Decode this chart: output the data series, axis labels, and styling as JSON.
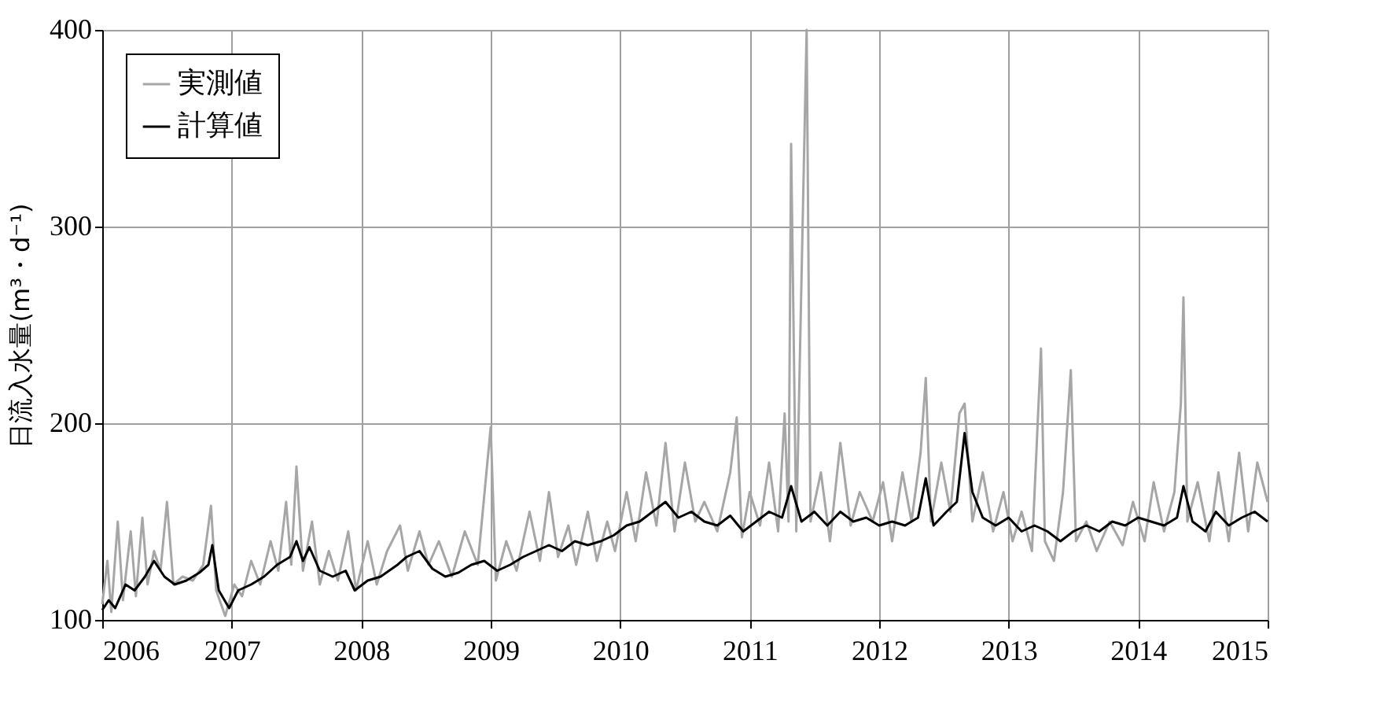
{
  "chart_data": {
    "type": "line",
    "ylabel": "日流入水量(m³・d⁻¹)",
    "xlim": [
      2006,
      2015
    ],
    "xticks": [
      2006,
      2007,
      2008,
      2009,
      2010,
      2011,
      2012,
      2013,
      2014,
      2015
    ],
    "ylim": [
      100,
      400
    ],
    "yticks": [
      100,
      200,
      300,
      400
    ],
    "grid": true,
    "legend": "top left",
    "marker": "none",
    "line_style": "solid",
    "series": [
      {
        "name": "実測値",
        "color": "#a6a6a6",
        "x": [
          2006.0,
          2006.04,
          2006.07,
          2006.12,
          2006.16,
          2006.22,
          2006.26,
          2006.31,
          2006.35,
          2006.4,
          2006.45,
          2006.5,
          2006.55,
          2006.62,
          2006.7,
          2006.78,
          2006.84,
          2006.88,
          2006.95,
          2007.02,
          2007.08,
          2007.15,
          2007.22,
          2007.3,
          2007.36,
          2007.42,
          2007.46,
          2007.5,
          2007.55,
          2007.62,
          2007.68,
          2007.75,
          2007.82,
          2007.9,
          2007.96,
          2008.05,
          2008.12,
          2008.2,
          2008.3,
          2008.36,
          2008.45,
          2008.52,
          2008.6,
          2008.7,
          2008.8,
          2008.9,
          2009.0,
          2009.04,
          2009.12,
          2009.2,
          2009.3,
          2009.38,
          2009.45,
          2009.52,
          2009.6,
          2009.66,
          2009.75,
          2009.82,
          2009.9,
          2009.96,
          2010.05,
          2010.12,
          2010.2,
          2010.28,
          2010.35,
          2010.42,
          2010.5,
          2010.58,
          2010.65,
          2010.75,
          2010.85,
          2010.9,
          2010.94,
          2011.0,
          2011.08,
          2011.15,
          2011.22,
          2011.27,
          2011.3,
          2011.32,
          2011.36,
          2011.44,
          2011.47,
          2011.55,
          2011.62,
          2011.7,
          2011.78,
          2011.85,
          2011.95,
          2012.03,
          2012.1,
          2012.18,
          2012.25,
          2012.32,
          2012.36,
          2012.4,
          2012.48,
          2012.55,
          2012.62,
          2012.66,
          2012.72,
          2012.8,
          2012.88,
          2012.96,
          2013.03,
          2013.1,
          2013.18,
          2013.25,
          2013.28,
          2013.35,
          2013.42,
          2013.48,
          2013.52,
          2013.6,
          2013.68,
          2013.78,
          2013.88,
          2013.96,
          2014.05,
          2014.12,
          2014.2,
          2014.28,
          2014.33,
          2014.35,
          2014.38,
          2014.46,
          2014.55,
          2014.62,
          2014.7,
          2014.78,
          2014.85,
          2014.92,
          2015.0
        ],
        "values": [
          108,
          130,
          104,
          150,
          110,
          145,
          112,
          152,
          118,
          135,
          125,
          160,
          118,
          122,
          120,
          128,
          158,
          115,
          102,
          118,
          112,
          130,
          118,
          140,
          125,
          160,
          128,
          178,
          125,
          150,
          118,
          135,
          120,
          145,
          115,
          140,
          118,
          135,
          148,
          125,
          145,
          128,
          140,
          122,
          145,
          128,
          198,
          120,
          140,
          125,
          155,
          130,
          165,
          132,
          148,
          128,
          155,
          130,
          150,
          135,
          165,
          140,
          175,
          148,
          190,
          145,
          180,
          150,
          160,
          145,
          175,
          203,
          142,
          165,
          148,
          180,
          145,
          205,
          150,
          342,
          145,
          400,
          150,
          175,
          140,
          190,
          148,
          165,
          150,
          170,
          140,
          175,
          150,
          185,
          223,
          150,
          180,
          155,
          205,
          210,
          150,
          175,
          145,
          165,
          140,
          155,
          135,
          238,
          140,
          130,
          165,
          227,
          140,
          150,
          135,
          150,
          138,
          160,
          140,
          170,
          145,
          165,
          210,
          264,
          150,
          170,
          140,
          175,
          140,
          185,
          145,
          180,
          160
        ]
      },
      {
        "name": "計算値",
        "color": "#000000",
        "x": [
          2006.0,
          2006.05,
          2006.1,
          2006.18,
          2006.25,
          2006.33,
          2006.4,
          2006.48,
          2006.56,
          2006.65,
          2006.75,
          2006.82,
          2006.85,
          2006.9,
          2006.98,
          2007.05,
          2007.15,
          2007.25,
          2007.35,
          2007.45,
          2007.5,
          2007.55,
          2007.6,
          2007.68,
          2007.78,
          2007.88,
          2007.95,
          2008.05,
          2008.15,
          2008.28,
          2008.35,
          2008.45,
          2008.55,
          2008.65,
          2008.75,
          2008.85,
          2008.95,
          2009.05,
          2009.15,
          2009.25,
          2009.35,
          2009.45,
          2009.55,
          2009.65,
          2009.75,
          2009.85,
          2009.95,
          2010.05,
          2010.15,
          2010.25,
          2010.35,
          2010.45,
          2010.55,
          2010.65,
          2010.75,
          2010.85,
          2010.95,
          2011.05,
          2011.15,
          2011.25,
          2011.32,
          2011.4,
          2011.5,
          2011.6,
          2011.7,
          2011.8,
          2011.9,
          2012.0,
          2012.1,
          2012.2,
          2012.3,
          2012.36,
          2012.42,
          2012.52,
          2012.6,
          2012.66,
          2012.72,
          2012.8,
          2012.9,
          2013.0,
          2013.1,
          2013.2,
          2013.3,
          2013.4,
          2013.5,
          2013.6,
          2013.7,
          2013.8,
          2013.9,
          2014.0,
          2014.1,
          2014.2,
          2014.3,
          2014.35,
          2014.42,
          2014.52,
          2014.6,
          2014.7,
          2014.8,
          2014.9,
          2015.0
        ],
        "values": [
          105,
          110,
          106,
          118,
          115,
          122,
          130,
          122,
          118,
          120,
          124,
          128,
          138,
          115,
          106,
          115,
          118,
          122,
          128,
          132,
          140,
          130,
          137,
          125,
          122,
          125,
          115,
          120,
          122,
          128,
          132,
          135,
          126,
          122,
          124,
          128,
          130,
          125,
          128,
          132,
          135,
          138,
          135,
          140,
          138,
          140,
          143,
          148,
          150,
          155,
          160,
          152,
          155,
          150,
          148,
          153,
          145,
          150,
          155,
          152,
          168,
          150,
          155,
          148,
          155,
          150,
          152,
          148,
          150,
          148,
          152,
          172,
          148,
          155,
          160,
          195,
          165,
          152,
          148,
          152,
          145,
          148,
          145,
          140,
          145,
          148,
          145,
          150,
          148,
          152,
          150,
          148,
          152,
          168,
          150,
          145,
          155,
          148,
          152,
          155,
          150
        ]
      }
    ]
  }
}
